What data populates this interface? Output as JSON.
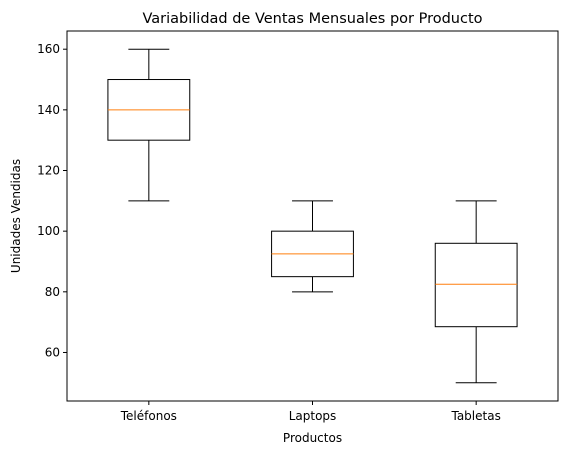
{
  "chart_data": {
    "type": "box",
    "title": "Variabilidad de Ventas Mensuales por Producto",
    "xlabel": "Productos",
    "ylabel": "Unidades Vendidas",
    "ylim": [
      44,
      166
    ],
    "yticks": [
      60,
      80,
      100,
      120,
      140,
      160
    ],
    "grid": false,
    "box_color": "#000000",
    "median_color": "#ff7f0e",
    "categories": [
      "Teléfonos",
      "Laptops",
      "Tabletas"
    ],
    "boxes": [
      {
        "category": "Teléfonos",
        "whisker_low": 110,
        "q1": 130,
        "median": 140,
        "q3": 150,
        "whisker_high": 160
      },
      {
        "category": "Laptops",
        "whisker_low": 80,
        "q1": 85,
        "median": 92.5,
        "q3": 100,
        "whisker_high": 110
      },
      {
        "category": "Tabletas",
        "whisker_low": 50,
        "q1": 68.5,
        "median": 82.5,
        "q3": 96,
        "whisker_high": 110
      }
    ]
  }
}
